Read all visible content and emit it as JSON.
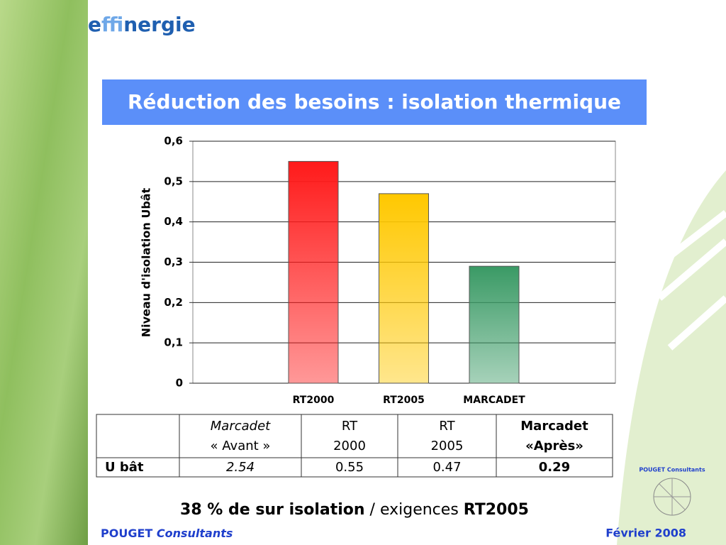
{
  "logo": [
    "e",
    "ffi",
    "nergie"
  ],
  "slide_title": "Réduction des besoins : isolation thermique",
  "chart_data": {
    "type": "bar",
    "y_label": "Niveau d'isolation Ubât",
    "categories": [
      "RT2000",
      "RT2005",
      "MARCADET"
    ],
    "values": [
      0.55,
      0.47,
      0.29
    ],
    "colors": [
      "#ff1a1a",
      "#ffc800",
      "#3a9a65"
    ],
    "ylim": [
      0,
      0.6
    ],
    "yticks": [
      0,
      {
        "value": 0.1,
        "label": "0,1"
      },
      {
        "value": 0.2,
        "label": "0,2"
      },
      {
        "value": 0.3,
        "label": "0,3"
      },
      {
        "value": 0.4,
        "label": "0,4"
      },
      {
        "value": 0.5,
        "label": "0,5"
      },
      {
        "value": 0.6,
        "label": "0,6"
      }
    ],
    "grid": true
  },
  "table": {
    "header": [
      null,
      [
        "Marcadet",
        "« Avant »"
      ],
      [
        "RT",
        "2000"
      ],
      [
        "RT",
        "2005"
      ],
      [
        "Marcadet",
        "«Après»"
      ]
    ],
    "rows": [
      [
        "U bât",
        "2.54",
        "0.55",
        "0.47",
        "0.29"
      ]
    ]
  },
  "conclusion": [
    "38 % de sur isolation",
    " / exigences ",
    "RT2005"
  ],
  "footer": {
    "company": [
      "POUGET",
      "Consultants"
    ],
    "date": "Février 2008",
    "badge": "POUGET Consultants"
  }
}
